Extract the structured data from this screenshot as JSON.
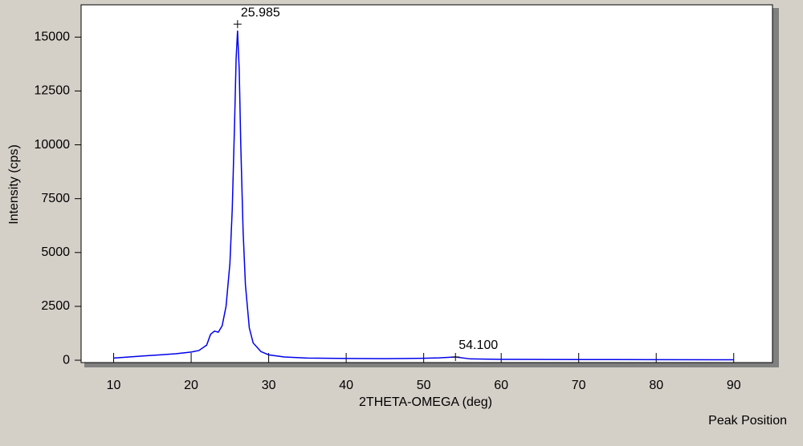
{
  "chart_data": {
    "type": "line",
    "xlabel": "2THETA-OMEGA  (deg)",
    "ylabel": "Intensity (cps)",
    "footer": "Peak Position",
    "x": [
      10,
      12,
      14,
      16,
      18,
      20,
      21,
      22,
      22.5,
      23,
      23.5,
      24,
      24.5,
      25,
      25.3,
      25.6,
      25.8,
      25.985,
      26.2,
      26.4,
      26.7,
      27,
      27.5,
      28,
      29,
      30,
      32,
      35,
      40,
      45,
      50,
      52,
      54.1,
      56,
      60,
      70,
      80,
      90
    ],
    "series": [
      {
        "name": "Intensity",
        "color": "#0000ee",
        "values": [
          100,
          150,
          200,
          250,
          300,
          380,
          450,
          700,
          1200,
          1350,
          1300,
          1600,
          2500,
          4500,
          7000,
          11000,
          14000,
          15300,
          13500,
          10000,
          6000,
          3500,
          1500,
          800,
          400,
          250,
          150,
          100,
          80,
          70,
          90,
          110,
          150,
          60,
          40,
          30,
          25,
          20
        ]
      }
    ],
    "annotations": [
      {
        "label": "25.985",
        "x": 25.985,
        "y": 15600
      },
      {
        "label": "54.100",
        "x": 54.1,
        "y": 150
      }
    ],
    "xlim": [
      5.8,
      95
    ],
    "ylim": [
      -110,
      16500
    ],
    "xticks": [
      10,
      20,
      30,
      40,
      50,
      60,
      70,
      80,
      90
    ],
    "yticks": [
      0,
      2500,
      5000,
      7500,
      10000,
      12500,
      15000
    ]
  }
}
